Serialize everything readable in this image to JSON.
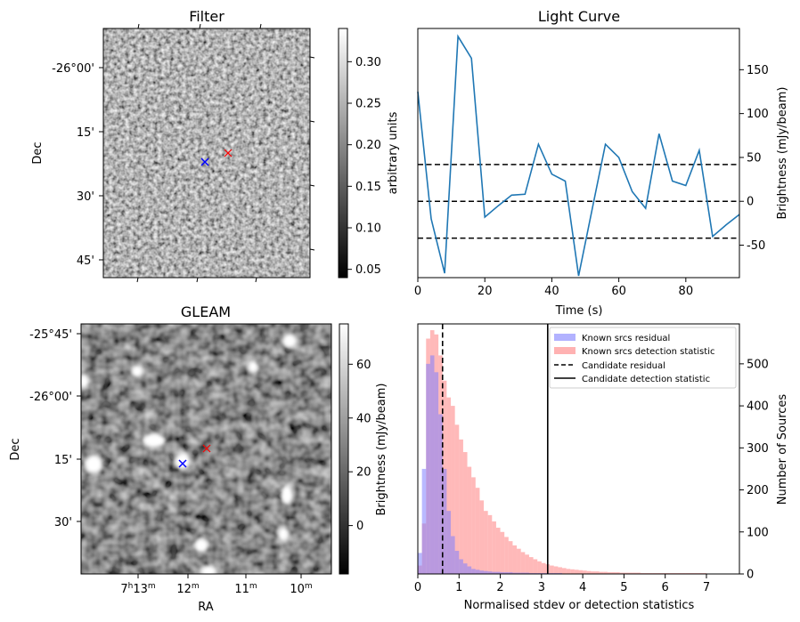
{
  "filter_panel": {
    "title": "Filter",
    "ylabel": "Dec",
    "yticks": [
      "-26°00'",
      "15'",
      "30'",
      "45'"
    ],
    "colorbar": {
      "label": "arbitrary units",
      "ticks": [
        "0.30",
        "0.25",
        "0.20",
        "0.15",
        "0.10",
        "0.05"
      ],
      "range": [
        0.04,
        0.34
      ]
    },
    "markers": [
      {
        "name": "candidate",
        "color": "#ff0000",
        "symbol": "x"
      },
      {
        "name": "known",
        "color": "#0000ff",
        "symbol": "x"
      }
    ]
  },
  "gleam_panel": {
    "title": "GLEAM",
    "ylabel": "Dec",
    "xlabel": "RA",
    "yticks": [
      "-25°45'",
      "-26°00'",
      "15'",
      "30'"
    ],
    "xticks": [
      {
        "h": "7",
        "m": "13"
      },
      {
        "h": "",
        "m": "12"
      },
      {
        "h": "",
        "m": "11"
      },
      {
        "h": "",
        "m": "10"
      }
    ],
    "colorbar": {
      "label": "Brightness (mJy/beam)",
      "ticks": [
        "60",
        "40",
        "20",
        "0"
      ],
      "range": [
        -18,
        75
      ]
    },
    "markers": [
      {
        "name": "candidate",
        "color": "#ff0000",
        "symbol": "x"
      },
      {
        "name": "known",
        "color": "#0000ff",
        "symbol": "x"
      }
    ]
  },
  "chart_data": [
    {
      "type": "line",
      "title": "Light Curve",
      "xlabel": "Time (s)",
      "ylabel": "Brightness (mJy/beam)",
      "xlim": [
        0,
        96
      ],
      "ylim": [
        -87,
        197
      ],
      "xticks": [
        0,
        20,
        40,
        60,
        80
      ],
      "yticks": [
        -50,
        0,
        50,
        100,
        150
      ],
      "x": [
        0,
        4,
        8,
        12,
        16,
        20,
        24,
        28,
        32,
        36,
        40,
        44,
        48,
        52,
        56,
        60,
        64,
        68,
        72,
        76,
        80,
        84,
        88,
        92,
        96
      ],
      "y": [
        125,
        -20,
        -82,
        188,
        163,
        -18,
        -5,
        7,
        8,
        65,
        31,
        23,
        -85,
        -10,
        65,
        50,
        11,
        -8,
        77,
        23,
        18,
        58,
        -40,
        -27,
        -15
      ],
      "hlines": [
        42,
        0,
        -42
      ],
      "color": "#1f77b4"
    },
    {
      "type": "bar",
      "subtype": "histogram",
      "xlabel": "Normalised stdev or detection statistics",
      "ylabel": "Number of Sources",
      "xlim": [
        0,
        7.8
      ],
      "ylim": [
        0,
        595
      ],
      "xticks": [
        0,
        1,
        2,
        3,
        4,
        5,
        6,
        7
      ],
      "yticks": [
        0,
        100,
        200,
        300,
        400,
        500
      ],
      "bin_width": 0.1,
      "series": [
        {
          "name": "Known srcs residual",
          "color": "#7f7fff",
          "values": [
            50,
            250,
            500,
            520,
            480,
            380,
            250,
            150,
            90,
            55,
            35,
            25,
            18,
            12,
            10,
            8,
            7,
            6,
            5,
            5,
            4,
            4,
            4,
            3,
            3,
            3,
            3,
            2,
            2,
            2,
            2,
            2,
            2,
            2,
            2,
            1,
            1,
            1,
            1,
            1,
            1,
            1,
            1,
            1,
            1,
            1,
            1,
            1,
            1,
            1
          ]
        },
        {
          "name": "Known srcs detection statistic",
          "color": "#ff7f7f",
          "values": [
            20,
            120,
            560,
            580,
            570,
            520,
            460,
            420,
            400,
            355,
            320,
            290,
            255,
            230,
            205,
            175,
            150,
            140,
            125,
            110,
            100,
            88,
            78,
            68,
            60,
            52,
            46,
            40,
            35,
            30,
            26,
            23,
            20,
            18,
            16,
            14,
            12,
            11,
            10,
            9,
            8,
            7,
            6,
            6,
            5,
            5,
            4,
            4,
            4,
            3,
            3,
            3,
            3,
            3,
            2,
            2,
            2,
            2,
            2,
            2,
            2,
            2,
            2,
            2,
            2,
            2,
            2,
            2,
            2,
            2,
            1,
            1,
            1,
            1,
            1,
            1,
            1,
            1
          ]
        }
      ],
      "vlines": [
        {
          "name": "Candidate residual",
          "x": 0.6,
          "style": "dashed"
        },
        {
          "name": "Candidate detection statistic",
          "x": 3.15,
          "style": "solid"
        }
      ],
      "legend_position": "top-right"
    }
  ]
}
